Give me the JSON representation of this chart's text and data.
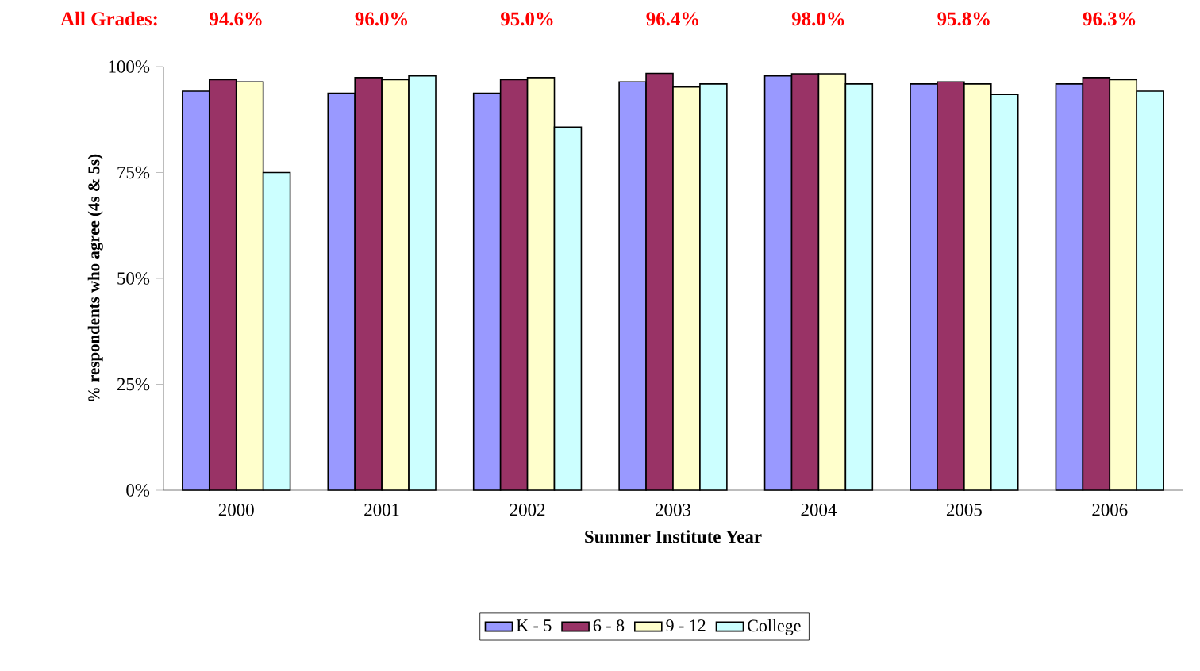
{
  "chart_data": {
    "type": "bar",
    "categories": [
      "2000",
      "2001",
      "2002",
      "2003",
      "2004",
      "2005",
      "2006"
    ],
    "series": [
      {
        "name": "K - 5",
        "color": "#9999ff",
        "values": [
          94.2,
          93.7,
          93.7,
          96.4,
          97.8,
          95.9,
          95.9
        ]
      },
      {
        "name": "6 - 8",
        "color": "#993366",
        "values": [
          96.9,
          97.4,
          96.9,
          98.4,
          98.3,
          96.4,
          97.4
        ]
      },
      {
        "name": "9 - 12",
        "color": "#ffffcc",
        "values": [
          96.4,
          96.9,
          97.4,
          95.2,
          98.3,
          95.9,
          96.9
        ]
      },
      {
        "name": "College",
        "color": "#ccffff",
        "values": [
          75.0,
          97.8,
          85.7,
          95.9,
          95.9,
          93.4,
          94.2
        ]
      }
    ],
    "ylim": [
      0,
      100
    ],
    "yticks": [
      {
        "value": 0,
        "label": "0%"
      },
      {
        "value": 25,
        "label": "25%"
      },
      {
        "value": 50,
        "label": "50%"
      },
      {
        "value": 75,
        "label": "75%"
      },
      {
        "value": 100,
        "label": "100%"
      }
    ],
    "xlabel": "Summer Institute Year",
    "ylabel": "% respondents who agree (4s & 5s)",
    "annotations": [
      "All Grades:",
      "94.6%",
      "96.0%",
      "95.0%",
      "96.4%",
      "98.0%",
      "95.8%",
      "96.3%"
    ],
    "legend": "bottom",
    "grid": false
  }
}
